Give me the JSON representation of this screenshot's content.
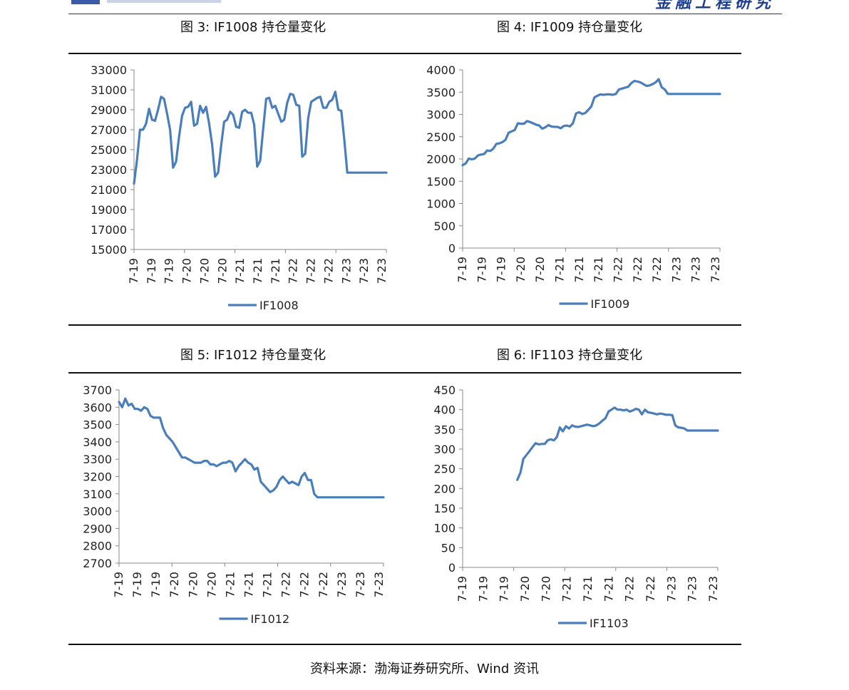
{
  "colors": {
    "series": "#4a7ebb",
    "axis": "#888888",
    "text": "#222222",
    "brand": "#1f3f8f"
  },
  "header": {
    "brand": "金融工程研究"
  },
  "source": "资料来源：渤海证券研究所、Wind 资讯",
  "chart_data": [
    {
      "type": "line",
      "title": "图 3:  IF1008 持仓量变化",
      "legend": "IF1008",
      "xlabel": "",
      "ylabel": "",
      "ylim": [
        15000,
        33000
      ],
      "yticks": [
        "33000",
        "31000",
        "29000",
        "27000",
        "25000",
        "23000",
        "21000",
        "19000",
        "17000",
        "15000"
      ],
      "categories": [
        "7-19",
        "7-19",
        "7-19",
        "7-20",
        "7-20",
        "7-20",
        "7-21",
        "7-21",
        "7-21",
        "7-22",
        "7-22",
        "7-22",
        "7-23",
        "7-23",
        "7-23"
      ],
      "x_max": 84,
      "x": [
        0,
        1,
        2,
        3,
        4,
        5,
        6,
        7,
        8,
        9,
        10,
        11,
        12,
        13,
        14,
        15,
        16,
        17,
        18,
        19,
        20,
        21,
        22,
        23,
        24,
        25,
        26,
        27,
        28,
        29,
        30,
        31,
        32,
        33,
        34,
        35,
        36,
        37,
        38,
        39,
        40,
        41,
        42,
        43,
        44,
        45,
        46,
        47,
        48,
        49,
        50,
        51,
        52,
        53,
        54,
        55,
        56,
        57,
        58,
        59,
        60,
        61,
        62,
        63,
        64,
        65,
        66,
        67,
        68,
        69,
        70,
        71,
        72,
        73,
        74,
        75,
        76,
        77,
        78,
        79,
        80,
        81,
        82,
        83,
        84
      ],
      "values": [
        21600,
        24000,
        27000,
        27000,
        27600,
        29100,
        28000,
        27900,
        29000,
        30300,
        30100,
        28600,
        27000,
        23200,
        23800,
        26300,
        28400,
        29200,
        29300,
        29800,
        27400,
        27600,
        29400,
        28700,
        29300,
        27600,
        25500,
        22300,
        22700,
        25400,
        27800,
        28000,
        28800,
        28500,
        27300,
        27200,
        28800,
        29000,
        28700,
        28700,
        27500,
        23300,
        23900,
        27100,
        30100,
        30200,
        29200,
        29400,
        28600,
        27800,
        28000,
        29700,
        30600,
        30500,
        29500,
        29400,
        24300,
        24600,
        28200,
        29800,
        30000,
        30200,
        30300,
        29200,
        29200,
        29800,
        30000,
        30800,
        29000,
        28900,
        26000,
        22700,
        22700,
        22700,
        22700,
        22700,
        22700,
        22700,
        22700,
        22700,
        22700,
        22700,
        22700,
        22700,
        22700
      ]
    },
    {
      "type": "line",
      "title": "图 4:  IF1009 持仓量变化",
      "legend": "IF1009",
      "xlabel": "",
      "ylabel": "",
      "ylim": [
        0,
        4000
      ],
      "yticks": [
        "4000",
        "3500",
        "3000",
        "2500",
        "2000",
        "1500",
        "1000",
        "500",
        "0"
      ],
      "categories": [
        "7-19",
        "7-19",
        "7-19",
        "7-20",
        "7-20",
        "7-21",
        "7-21",
        "7-21",
        "7-22",
        "7-22",
        "7-22",
        "7-23",
        "7-23",
        "7-23"
      ],
      "x_max": 84,
      "x": [
        0,
        1,
        2,
        3,
        4,
        5,
        6,
        7,
        8,
        9,
        10,
        11,
        12,
        13,
        14,
        15,
        16,
        17,
        18,
        19,
        20,
        21,
        22,
        23,
        24,
        25,
        26,
        27,
        28,
        29,
        30,
        31,
        32,
        33,
        34,
        35,
        36,
        37,
        38,
        39,
        40,
        41,
        42,
        43,
        44,
        45,
        46,
        47,
        48,
        49,
        50,
        51,
        52,
        53,
        54,
        55,
        56,
        57,
        58,
        59,
        60,
        61,
        62,
        63,
        64,
        65,
        66,
        67,
        68,
        69,
        70,
        71,
        72,
        73,
        74,
        75,
        76,
        77,
        78,
        79,
        80,
        81,
        82,
        83,
        84
      ],
      "values": [
        1860,
        1900,
        2010,
        1990,
        2010,
        2080,
        2100,
        2110,
        2190,
        2180,
        2230,
        2340,
        2350,
        2380,
        2430,
        2590,
        2620,
        2650,
        2800,
        2790,
        2790,
        2850,
        2830,
        2800,
        2770,
        2750,
        2680,
        2710,
        2760,
        2730,
        2720,
        2720,
        2690,
        2740,
        2750,
        2730,
        2800,
        3020,
        3050,
        3010,
        3030,
        3100,
        3180,
        3380,
        3420,
        3450,
        3440,
        3450,
        3450,
        3440,
        3460,
        3560,
        3580,
        3600,
        3620,
        3700,
        3750,
        3740,
        3720,
        3680,
        3640,
        3650,
        3680,
        3720,
        3790,
        3610,
        3560,
        3460,
        3460,
        3460,
        3460,
        3460,
        3460,
        3460,
        3460,
        3460,
        3460,
        3460,
        3460,
        3460,
        3460,
        3460,
        3460,
        3460,
        3460
      ]
    },
    {
      "type": "line",
      "title": "图 5:  IF1012 持仓量变化",
      "legend": "IF1012",
      "xlabel": "",
      "ylabel": "",
      "ylim": [
        2700,
        3700
      ],
      "yticks": [
        "3700",
        "3600",
        "3500",
        "3400",
        "3300",
        "3200",
        "3100",
        "3000",
        "2900",
        "2800",
        "2700"
      ],
      "categories": [
        "7-19",
        "7-19",
        "7-19",
        "7-20",
        "7-20",
        "7-20",
        "7-21",
        "7-21",
        "7-21",
        "7-22",
        "7-22",
        "7-22",
        "7-23",
        "7-23",
        "7-23"
      ],
      "x_max": 84,
      "x": [
        0,
        1,
        2,
        3,
        4,
        5,
        6,
        7,
        8,
        9,
        10,
        11,
        12,
        13,
        14,
        15,
        16,
        17,
        18,
        19,
        20,
        21,
        22,
        23,
        24,
        25,
        26,
        27,
        28,
        29,
        30,
        31,
        32,
        33,
        34,
        35,
        36,
        37,
        38,
        39,
        40,
        41,
        42,
        43,
        44,
        45,
        46,
        47,
        48,
        49,
        50,
        51,
        52,
        53,
        54,
        55,
        56,
        57,
        58,
        59,
        60,
        61,
        62,
        63,
        64,
        65,
        66,
        67,
        68,
        69,
        70,
        71,
        72,
        73,
        74,
        75,
        76,
        77,
        78,
        79,
        80,
        81,
        82,
        83,
        84
      ],
      "values": [
        3630,
        3600,
        3650,
        3610,
        3620,
        3590,
        3590,
        3580,
        3600,
        3590,
        3550,
        3540,
        3540,
        3540,
        3480,
        3440,
        3420,
        3400,
        3370,
        3340,
        3310,
        3310,
        3300,
        3290,
        3280,
        3280,
        3280,
        3290,
        3290,
        3270,
        3270,
        3260,
        3270,
        3280,
        3280,
        3290,
        3280,
        3230,
        3260,
        3280,
        3300,
        3280,
        3270,
        3240,
        3250,
        3170,
        3150,
        3130,
        3110,
        3120,
        3140,
        3180,
        3200,
        3180,
        3160,
        3170,
        3160,
        3150,
        3200,
        3220,
        3180,
        3180,
        3100,
        3080,
        3080,
        3080,
        3080,
        3080,
        3080,
        3080,
        3080,
        3080,
        3080,
        3080,
        3080,
        3080,
        3080,
        3080,
        3080,
        3080,
        3080,
        3080,
        3080,
        3080,
        3080
      ]
    },
    {
      "type": "line",
      "title": "图 6:  IF1103 持仓量变化",
      "legend": "IF1103",
      "xlabel": "",
      "ylabel": "",
      "ylim": [
        0,
        450
      ],
      "yticks": [
        "450",
        "400",
        "350",
        "300",
        "250",
        "200",
        "150",
        "100",
        "50",
        "0"
      ],
      "categories": [
        "7-19",
        "7-19",
        "7-19",
        "7-20",
        "7-20",
        "7-21",
        "7-21",
        "7-21",
        "7-22",
        "7-22",
        "7-23",
        "7-23",
        "7-23"
      ],
      "x_max": 84,
      "x": [
        18,
        19,
        20,
        21,
        22,
        23,
        24,
        25,
        26,
        27,
        28,
        29,
        30,
        31,
        32,
        33,
        34,
        35,
        36,
        37,
        38,
        39,
        40,
        41,
        42,
        43,
        44,
        45,
        46,
        47,
        48,
        49,
        50,
        51,
        52,
        53,
        54,
        55,
        56,
        57,
        58,
        59,
        60,
        61,
        62,
        63,
        64,
        65,
        66,
        67,
        68,
        69,
        70,
        71,
        72,
        73,
        74,
        75,
        76,
        77,
        78,
        79,
        80,
        81,
        82,
        83,
        84
      ],
      "values": [
        222,
        240,
        275,
        285,
        295,
        305,
        315,
        312,
        313,
        313,
        322,
        325,
        322,
        330,
        355,
        345,
        358,
        352,
        360,
        357,
        356,
        358,
        360,
        362,
        360,
        358,
        360,
        365,
        372,
        378,
        395,
        400,
        405,
        400,
        400,
        398,
        400,
        395,
        398,
        402,
        400,
        388,
        400,
        393,
        392,
        390,
        388,
        390,
        389,
        387,
        387,
        386,
        360,
        355,
        354,
        352,
        347,
        347,
        347,
        347,
        347,
        347,
        347,
        347,
        347,
        347,
        347
      ]
    }
  ]
}
